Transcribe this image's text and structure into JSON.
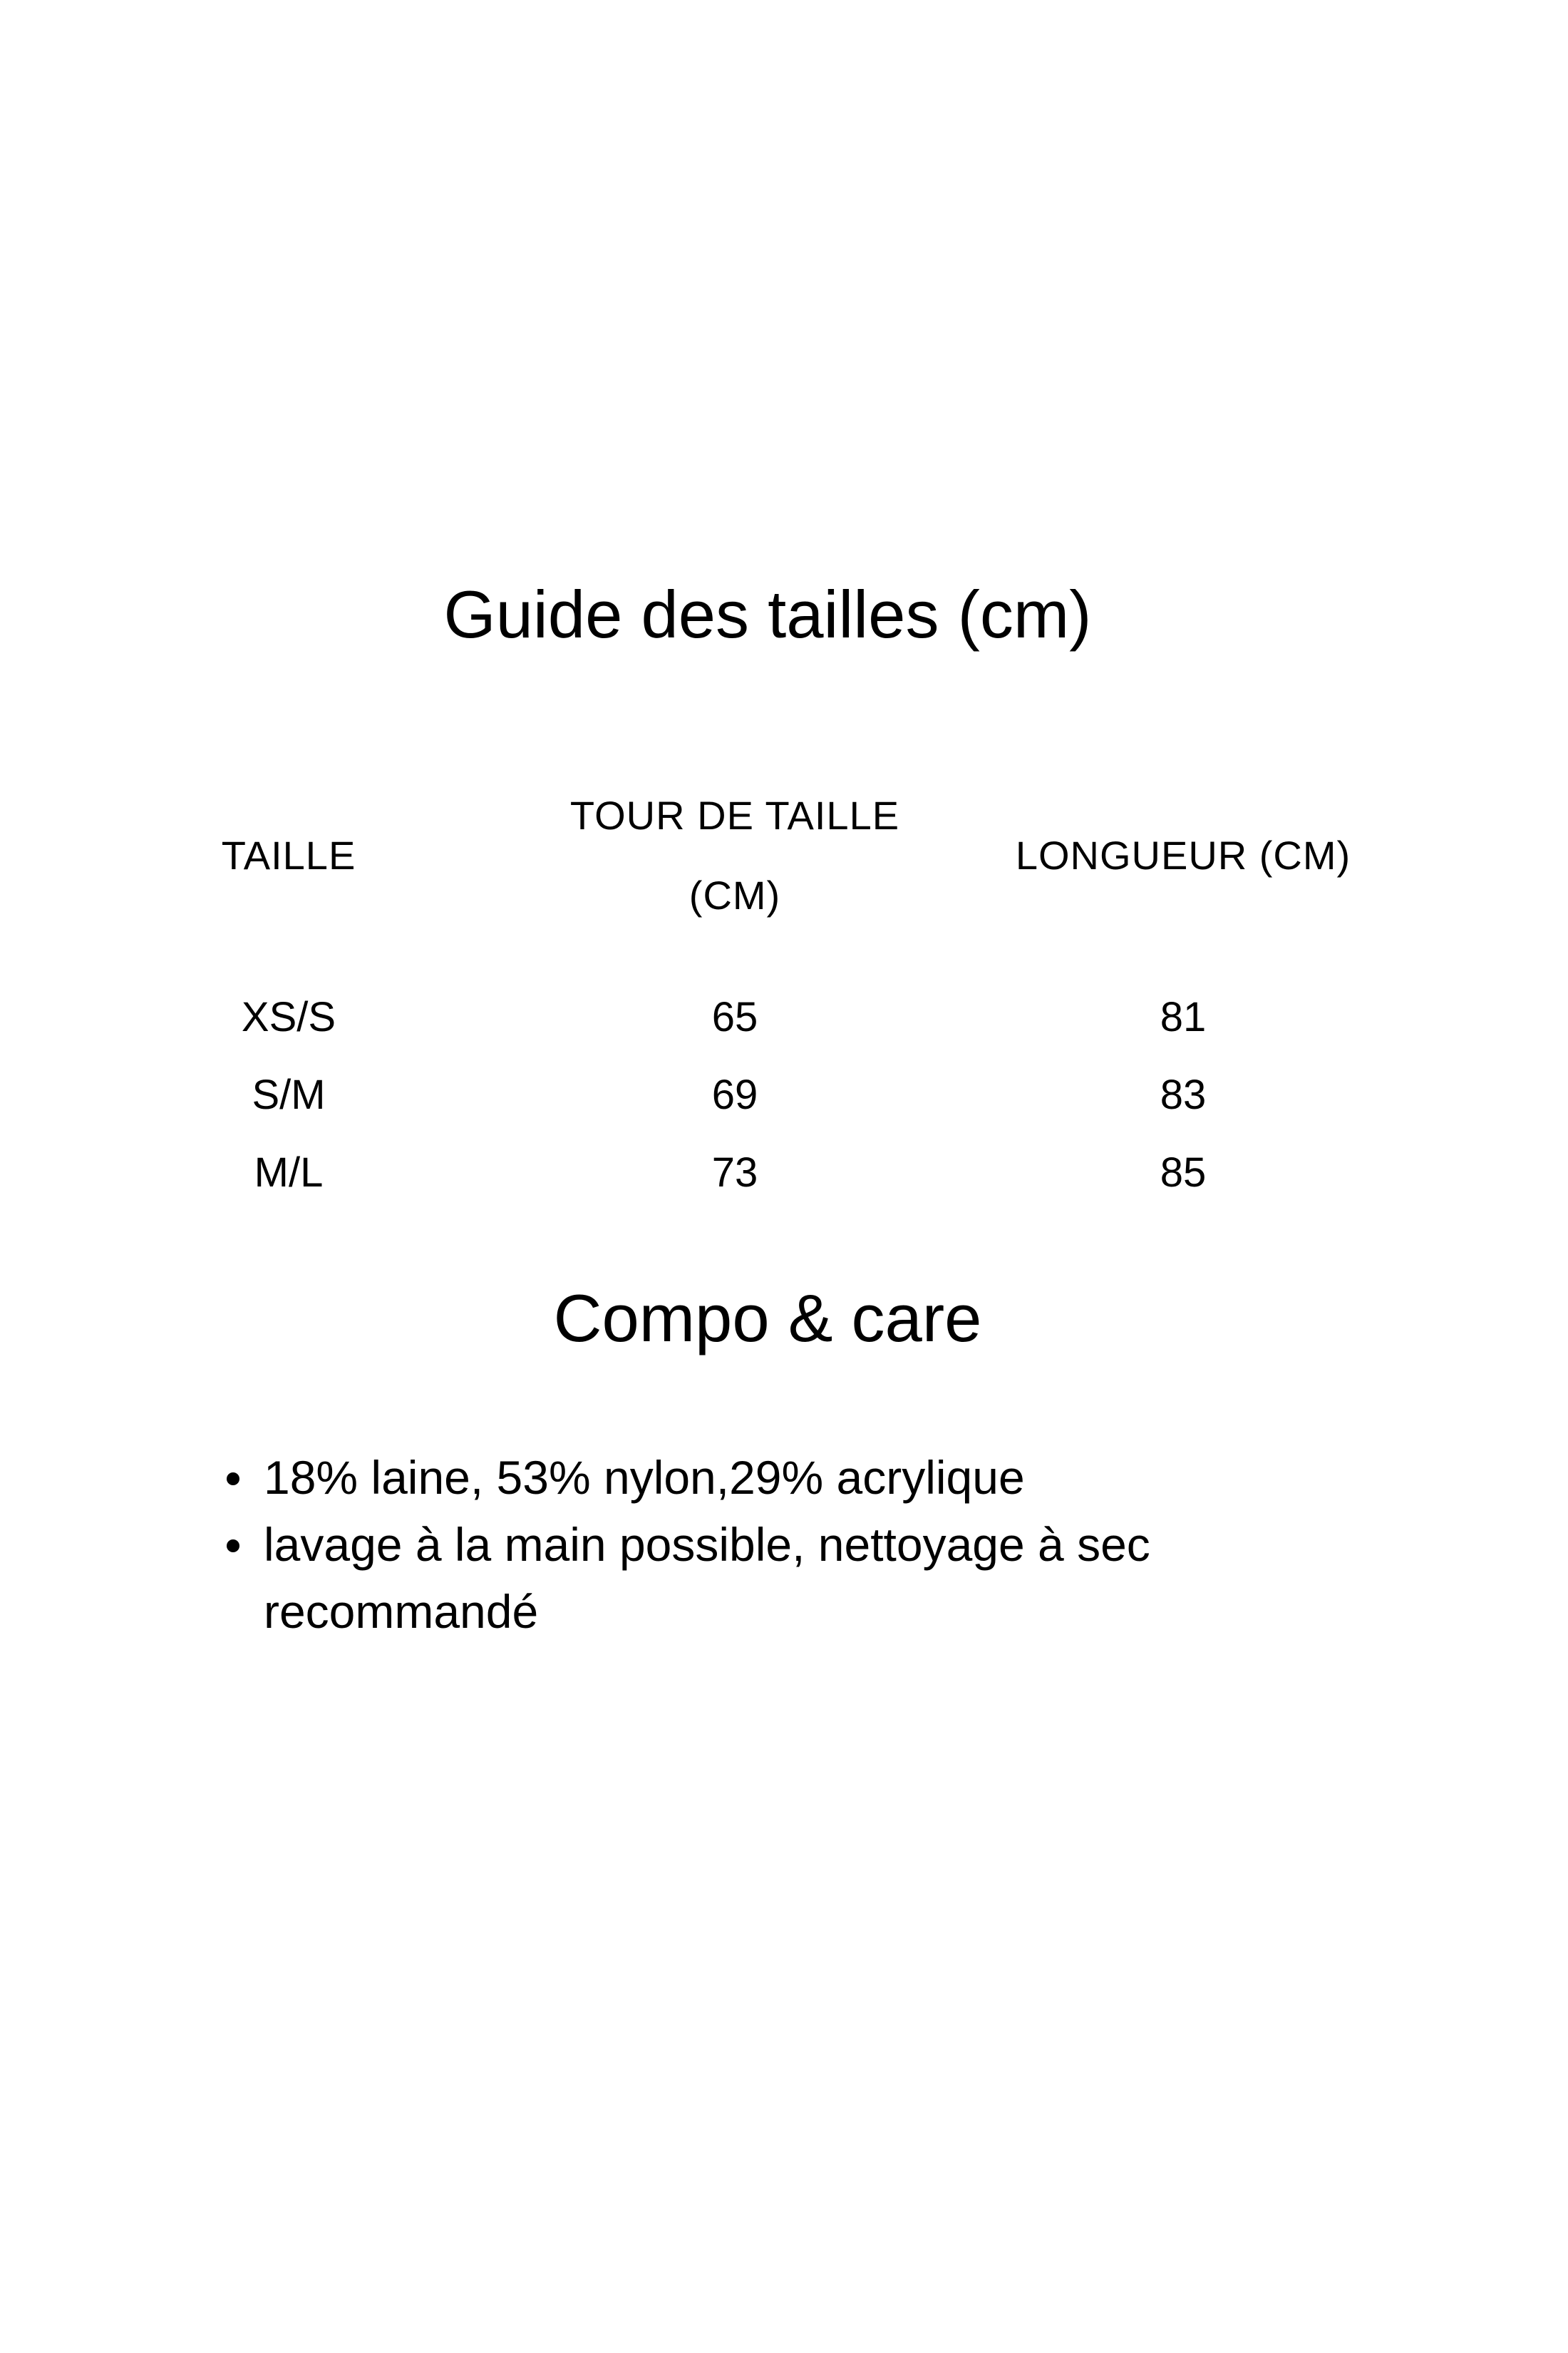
{
  "size_guide": {
    "title": "Guide des tailles (cm)",
    "headers": [
      "TAILLE",
      "TOUR DE TAILLE (CM)",
      "LONGUEUR (CM)"
    ],
    "header_lines": {
      "waist_line1": "TOUR DE TAILLE",
      "waist_line2": "(CM)"
    },
    "rows": [
      {
        "size": "XS/S",
        "waist": "65",
        "length": "81"
      },
      {
        "size": "S/M",
        "waist": "69",
        "length": "83"
      },
      {
        "size": "M/L",
        "waist": "73",
        "length": "85"
      }
    ]
  },
  "care": {
    "title": "Compo & care",
    "items": [
      "18% laine, 53% nylon,29% acrylique",
      "lavage à la main possible, nettoyage à sec recommandé"
    ]
  }
}
